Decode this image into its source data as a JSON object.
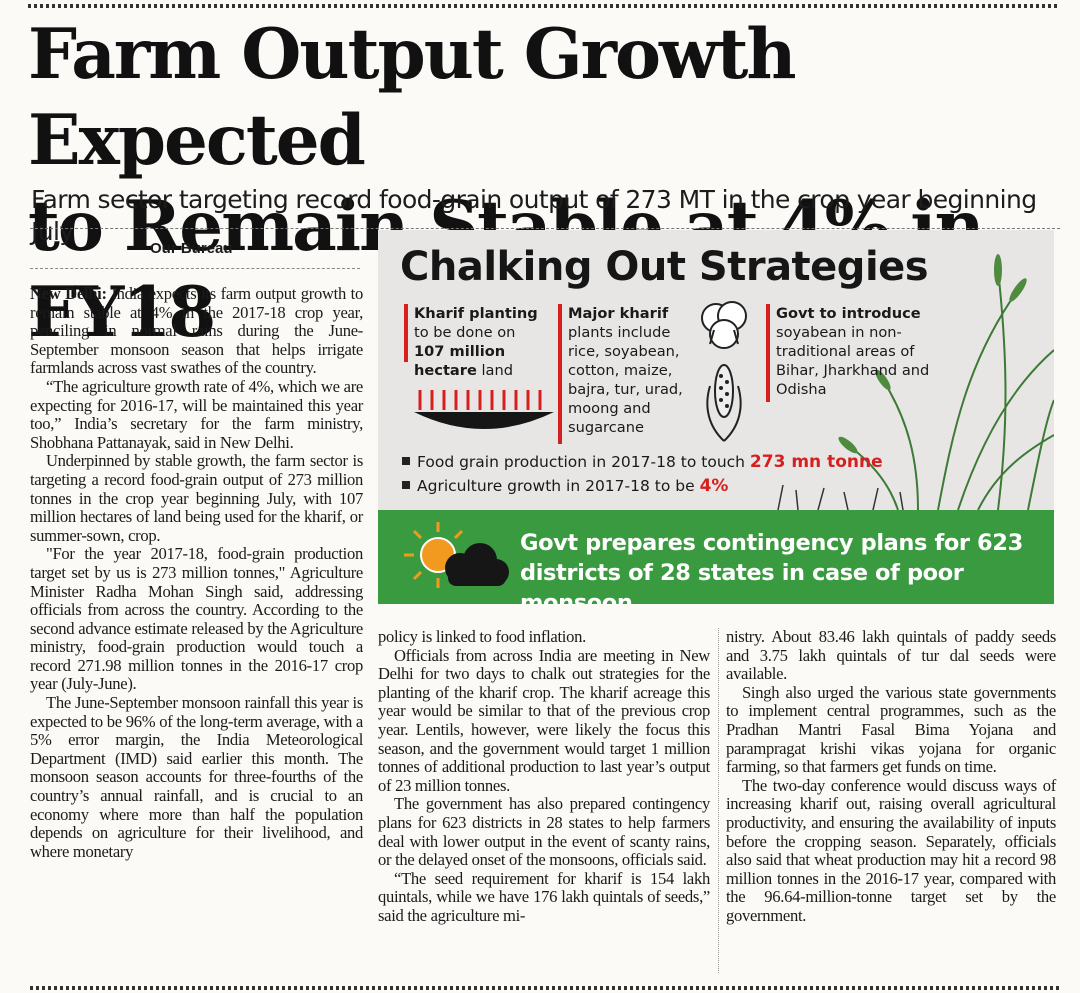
{
  "headline": {
    "line1": "Farm Output Growth Expected",
    "line2": "to Remain Stable at 4% in FY18"
  },
  "deck": "Farm sector targeting record food-grain output of 273 MT in the crop year beginning July",
  "byline": "Our Bureau",
  "infographic": {
    "title": "Chalking Out Strategies",
    "col1": {
      "bold1": "Kharif planting",
      "text1": "to be done on",
      "bold2": "107 million hectare",
      "text2": " land"
    },
    "col2": {
      "bold": "Major kharif",
      "text": "plants include rice, soyabean, cotton, maize, bajra, tur, urad, moong and sugarcane"
    },
    "col3": {
      "bold": "Govt to introduce",
      "text": "soyabean in non-traditional areas of Bihar, Jharkhand and Odisha"
    },
    "bullet1_text": "Food grain production in 2017-18 to touch ",
    "bullet1_value": "273 mn tonne",
    "bullet2_text": "Agriculture growth in 2017-18 to be ",
    "bullet2_value": "4%",
    "banner": "Govt prepares contingency plans for 623 districts of 28 states in case of poor monsoon",
    "colors": {
      "green": "#3a9a3f",
      "red": "#d6201f",
      "panel": "#e7e6e5",
      "sun": "#f29a1f"
    }
  },
  "article": {
    "dateline": "New Delhi:",
    "col1": [
      "India expects its farm output growth to remain stable at 4% in the 2017-18 crop year, penciling in normal rains during the June-September monsoon season that helps irrigate farmlands across vast swathes of the country.",
      "“The agriculture growth rate of 4%, which we are expecting for 2016-17, will be maintained this year too,” India’s secretary for the farm ministry, Shobhana Pattanayak, said in New Delhi.",
      "Underpinned by stable growth, the farm sector is targeting a record food-grain output of 273 million tonnes in the crop year beginning July, with 107 million hectares of land being used for the kharif, or summer-sown, crop.",
      "\"For the year 2017-18, food-grain production target set by us is 273 million tonnes,\" Agriculture Minister Radha Mohan Singh said, addressing officials from across the country. According to the second advance estimate released by the Agriculture ministry, food-grain production would touch a record 271.98 million tonnes in the 2016-17 crop year (July-June).",
      "The June-September monsoon rainfall this year is expected to be 96% of the long-term average, with a 5% error margin, the India Meteorological Department (IMD) said earlier this month. The monsoon season accounts for three-fourths of the country’s annual rainfall, and is crucial to an economy where more than half the population depends on agriculture for their livelihood, and where monetary"
    ],
    "col2": [
      "policy is linked to food inflation.",
      "Officials from across India are meeting in New Delhi for two days to chalk out strategies for the planting of the kharif crop. The kharif acreage this year would be similar to that of the previous crop year. Lentils, however, were likely the focus this season, and the government would target 1 million tonnes of additional production to last year’s output of 23 million tonnes.",
      "The government has also prepared contingency plans for 623 districts in 28 states to help farmers deal with lower output in the event of scanty rains, or the delayed onset of the monsoons, officials said.",
      "“The seed requirement for kharif is 154 lakh quintals, while we have 176 lakh quintals of seeds,” said the agriculture mi-"
    ],
    "col3": [
      "nistry. About 83.46 lakh quintals of paddy seeds and 3.75 lakh quintals of tur dal seeds were available.",
      "Singh also urged the various state governments to implement central programmes, such as the Pradhan Mantri Fasal Bima Yojana and parampragat krishi vikas yojana for organic farming, so that farmers get funds on time.",
      "The two-day conference would discuss ways of increasing kharif out, raising overall agricultural productivity, and ensuring the availability of inputs before the cropping season. Separately, officials also said that wheat production may hit a record 98 million tonnes in the 2016-17 year, compared with the 96.64-million-tonne target set by the government."
    ]
  }
}
